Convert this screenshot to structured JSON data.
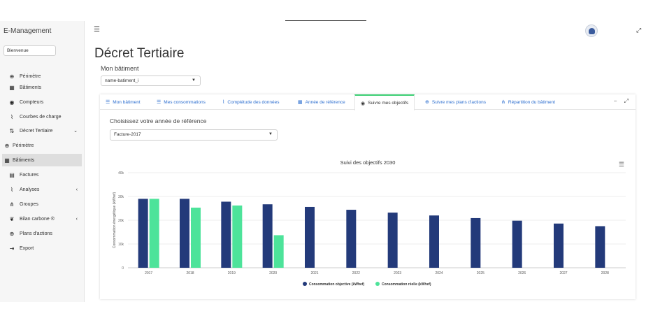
{
  "app": {
    "brand": "E-Management",
    "welcome": "Bienvenue"
  },
  "sidebar": {
    "items": [
      {
        "icon": "globe-icon",
        "glyph": "⊕",
        "label": "Périmètre"
      },
      {
        "icon": "building-icon",
        "glyph": "▦",
        "label": "Bâtiments"
      },
      {
        "icon": "gauge-icon",
        "glyph": "◉",
        "label": "Compteurs"
      },
      {
        "icon": "chart-line-icon",
        "glyph": "⌇",
        "label": "Courbes de charge"
      },
      {
        "icon": "sort-icon",
        "glyph": "⇅",
        "label": "Décret Tertiaire"
      },
      {
        "icon": "globe-icon",
        "glyph": "⊕",
        "label": "Périmètre"
      },
      {
        "icon": "building-icon",
        "glyph": "▦",
        "label": "Bâtiments"
      },
      {
        "icon": "invoice-icon",
        "glyph": "▤",
        "label": "Factures"
      },
      {
        "icon": "chart-area-icon",
        "glyph": "⌇",
        "label": "Analyses"
      },
      {
        "icon": "sitemap-icon",
        "glyph": "⋔",
        "label": "Groupes"
      },
      {
        "icon": "leaf-icon",
        "glyph": "❦",
        "label": "Bilan carbone ®"
      },
      {
        "icon": "crosshair-icon",
        "glyph": "⊕",
        "label": "Plans d'actions"
      },
      {
        "icon": "export-icon",
        "glyph": "⇥",
        "label": "Export"
      }
    ]
  },
  "page": {
    "title": "Décret Tertiaire",
    "subtitle": "Mon bâtiment",
    "building_select": "name-batiment_i",
    "choose_label": "Choisissez votre année de référence",
    "year_select": "Facture-2017"
  },
  "tabs": [
    {
      "icon": "list-icon",
      "glyph": "☰",
      "label": "Mon bâtiment"
    },
    {
      "icon": "list-icon",
      "glyph": "☰",
      "label": "Mes consommations"
    },
    {
      "icon": "chart-area-icon",
      "glyph": "⌇",
      "label": "Complétude des données"
    },
    {
      "icon": "calendar-icon",
      "glyph": "▦",
      "label": "Année de référence"
    },
    {
      "icon": "gauge-icon",
      "glyph": "◉",
      "label": "Suivre mes objectifs"
    },
    {
      "icon": "crosshair-icon",
      "glyph": "⊕",
      "label": "Suivre mes plans d'actions"
    },
    {
      "icon": "sitemap-icon",
      "glyph": "⋔",
      "label": "Répartition du bâtiment"
    }
  ],
  "card_tools": {
    "minimize": "−",
    "expand": "⤢"
  },
  "colors": {
    "objective": "#233a7a",
    "real": "#4de39a",
    "accent": "#3bcf73",
    "link": "#2c6ecf"
  },
  "chart_data": {
    "type": "bar",
    "title": "Suivi des objectifs 2030",
    "ylabel": "Consommation énergétique (kWhef)",
    "ylim": [
      0,
      40000
    ],
    "yticks": [
      "0",
      "10k",
      "20k",
      "30k",
      "40k"
    ],
    "categories": [
      "2017",
      "2018",
      "2019",
      "2020",
      "2021",
      "2022",
      "2023",
      "2024",
      "2025",
      "2026",
      "2027",
      "2028"
    ],
    "series": [
      {
        "name": "Consommation objective (kWhef)",
        "values": [
          29000,
          29000,
          27800,
          26700,
          25600,
          24400,
          23200,
          22000,
          20900,
          19800,
          18600,
          17500
        ]
      },
      {
        "name": "Consommation réelle (kWhef)",
        "values": [
          29000,
          25300,
          26200,
          13700,
          null,
          null,
          null,
          null,
          null,
          null,
          null,
          null
        ]
      }
    ]
  }
}
